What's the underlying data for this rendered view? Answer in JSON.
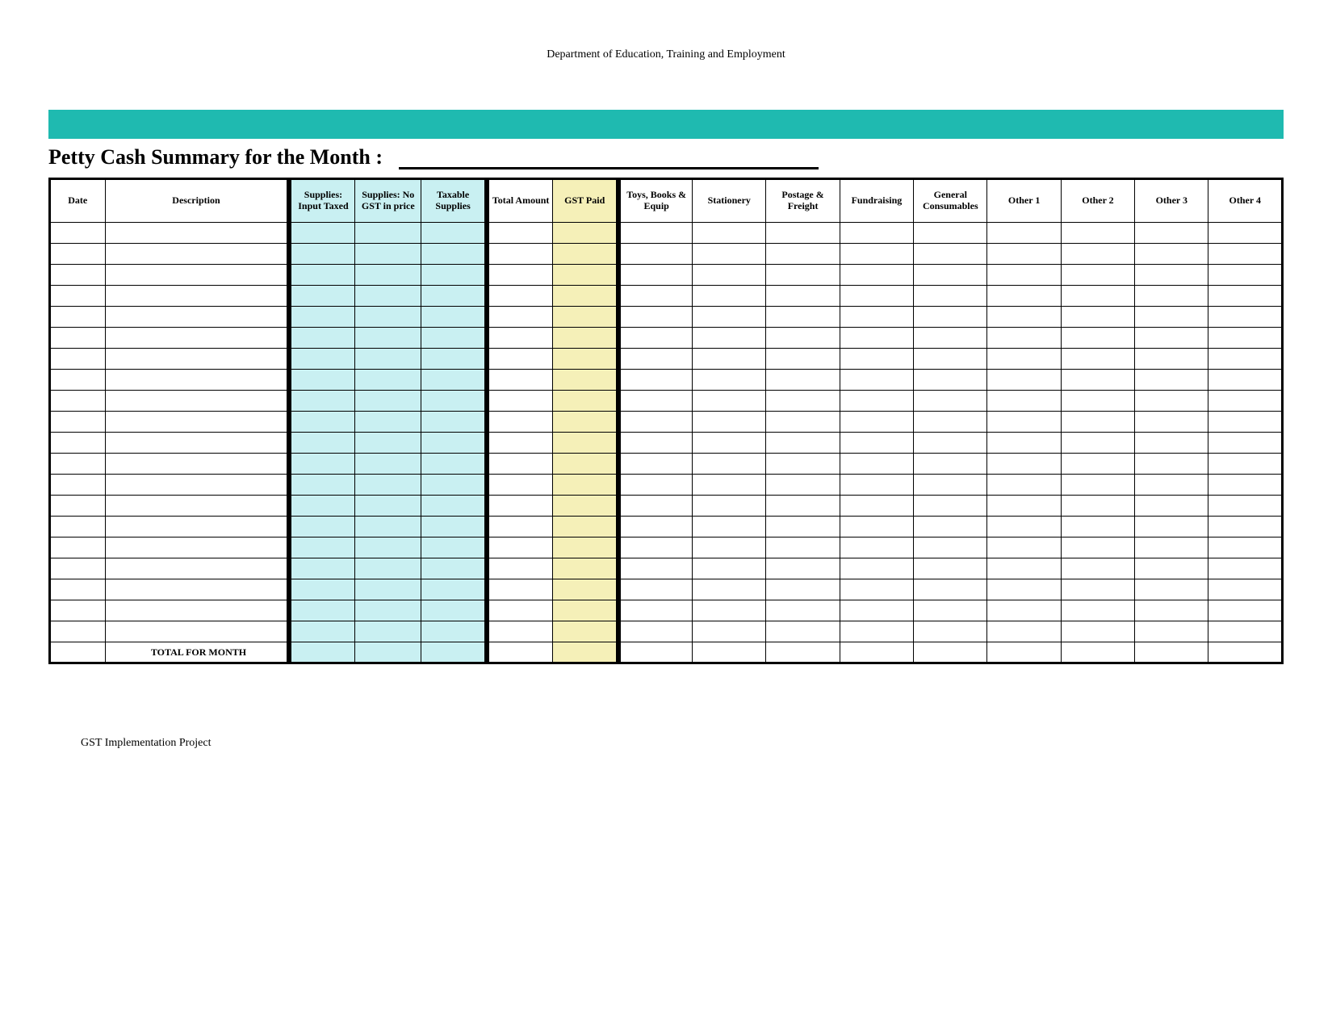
{
  "header": {
    "department": "Department of Education, Training and Employment"
  },
  "colors": {
    "teal_bar": "#1fbab0",
    "supplies_fill": "#c9f0f2",
    "gst_fill": "#f5f0b8",
    "background": "#ffffff",
    "border": "#000000"
  },
  "title": "Petty Cash Summary for the Month :",
  "table": {
    "num_data_rows": 20,
    "columns": [
      {
        "key": "date",
        "label": "Date",
        "group": "plain",
        "class": "col-date"
      },
      {
        "key": "desc",
        "label": "Description",
        "group": "plain",
        "class": "col-desc"
      },
      {
        "key": "sup_taxed",
        "label": "Supplies: Input Taxed",
        "group": "supplies",
        "class": "col-sup",
        "sep": "left"
      },
      {
        "key": "sup_nogst",
        "label": "Supplies: No GST in price",
        "group": "supplies",
        "class": "col-sup"
      },
      {
        "key": "sup_taxable",
        "label": "Taxable Supplies",
        "group": "supplies",
        "class": "col-sup",
        "sep": "right"
      },
      {
        "key": "total_amt",
        "label": "Total Amount",
        "group": "amount",
        "class": "col-amt",
        "sep": "left"
      },
      {
        "key": "gst_paid",
        "label": "GST Paid",
        "group": "gst",
        "class": "col-amt",
        "sep": "right"
      },
      {
        "key": "toys",
        "label": "Toys, Books & Equip",
        "group": "cat",
        "class": "col-cat",
        "sep": "left"
      },
      {
        "key": "stationery",
        "label": "Stationery",
        "group": "cat",
        "class": "col-cat"
      },
      {
        "key": "postage",
        "label": "Postage & Freight",
        "group": "cat",
        "class": "col-cat"
      },
      {
        "key": "fundraising",
        "label": "Fundraising",
        "group": "cat",
        "class": "col-cat"
      },
      {
        "key": "consumables",
        "label": "General Consumables",
        "group": "cat",
        "class": "col-cat"
      },
      {
        "key": "other1",
        "label": "Other 1",
        "group": "cat",
        "class": "col-cat"
      },
      {
        "key": "other2",
        "label": "Other 2",
        "group": "cat",
        "class": "col-cat"
      },
      {
        "key": "other3",
        "label": "Other 3",
        "group": "cat",
        "class": "col-cat"
      },
      {
        "key": "other4",
        "label": "Other 4",
        "group": "cat",
        "class": "col-cat"
      }
    ],
    "total_label": "TOTAL FOR MONTH"
  },
  "footer": "GST Implementation Project"
}
